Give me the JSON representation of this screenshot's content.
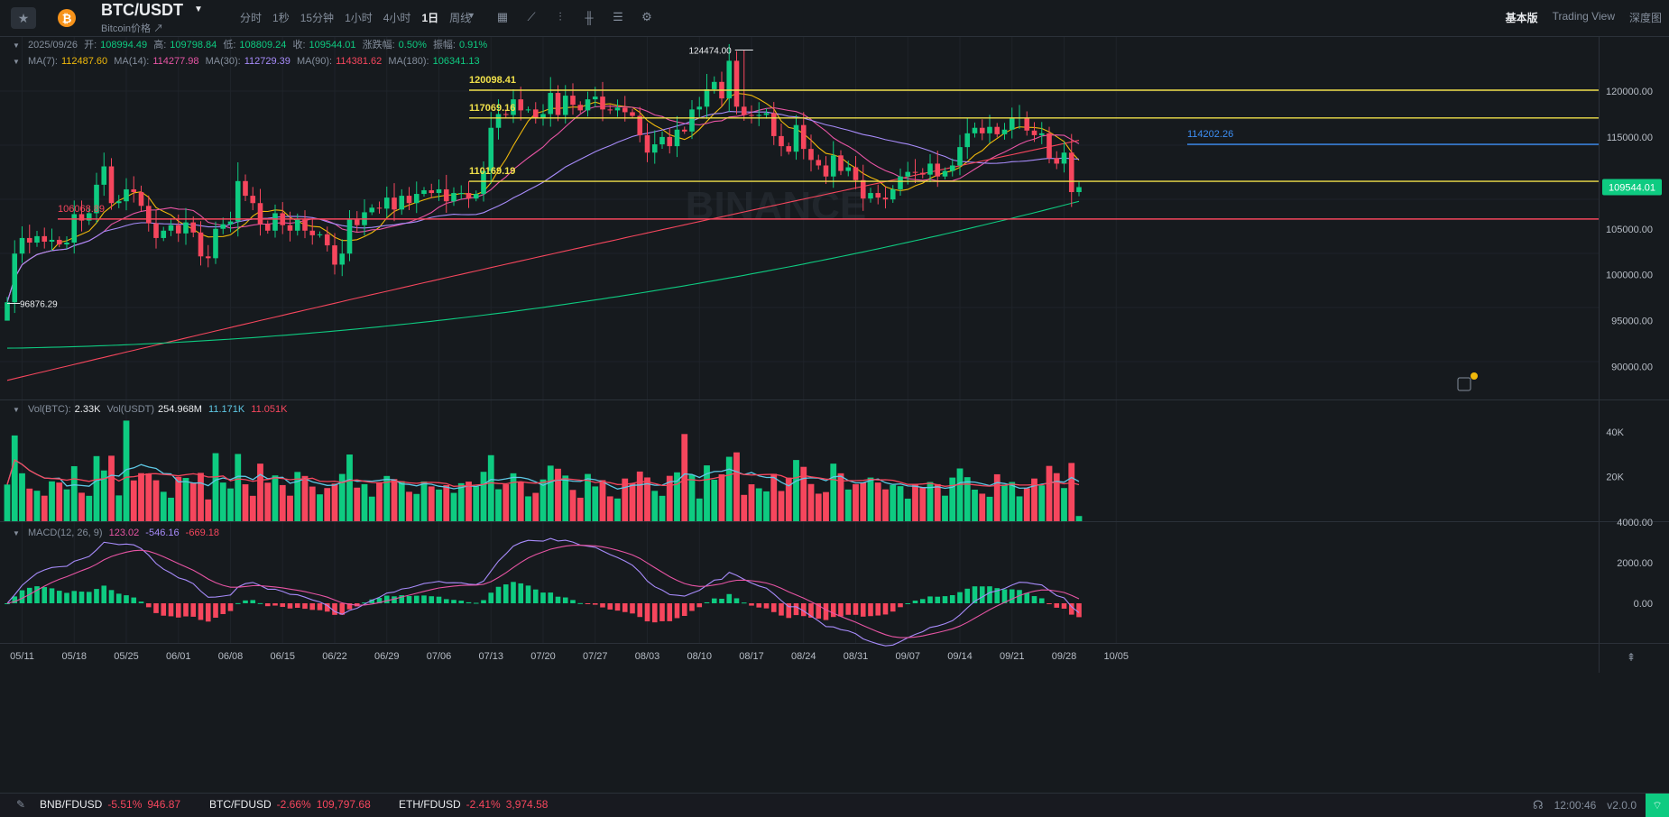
{
  "header": {
    "pair": "BTC/USDT",
    "subtitle": "Bitcoin价格 ↗",
    "coin_symbol": "₿",
    "intervals": [
      "分时",
      "1秒",
      "15分钟",
      "1小时",
      "4小时",
      "1日",
      "周线"
    ],
    "active_interval": "1日",
    "views": [
      "基本版",
      "Trading View",
      "深度图"
    ],
    "active_view": "基本版"
  },
  "ohlc": {
    "date": "2025/09/26",
    "open_label": "开:",
    "open": "108994.49",
    "high_label": "高:",
    "high": "109798.84",
    "low_label": "低:",
    "low": "108809.24",
    "close_label": "收:",
    "close": "109544.01",
    "change_label": "涨跌幅:",
    "change": "0.50%",
    "amp_label": "振幅:",
    "amp": "0.91%"
  },
  "ma": [
    {
      "label": "MA(7):",
      "value": "112487.60",
      "color": "#f0b90b"
    },
    {
      "label": "MA(14):",
      "value": "114277.98",
      "color": "#e754a4"
    },
    {
      "label": "MA(30):",
      "value": "112729.39",
      "color": "#a78bfa"
    },
    {
      "label": "MA(90):",
      "value": "114381.62",
      "color": "#f6465d"
    },
    {
      "label": "MA(180):",
      "value": "106341.13",
      "color": "#0ecb81"
    }
  ],
  "volume": {
    "btc_label": "Vol(BTC):",
    "btc": "2.33K",
    "usdt_label": "Vol(USDT)",
    "usdt": "254.968M",
    "ma1": "11.171K",
    "ma2": "11.051K"
  },
  "macd": {
    "label": "MACD(12, 26, 9)",
    "dif": "123.02",
    "dea": "-546.16",
    "hist": "-669.18"
  },
  "price_axis": [
    "120000.00",
    "115000.00",
    "110000.00",
    "105000.00",
    "100000.00",
    "95000.00",
    "90000.00"
  ],
  "volume_axis": [
    "40K",
    "20K"
  ],
  "macd_axis": [
    "4000.00",
    "2000.00",
    "0.00"
  ],
  "date_axis": [
    "05/11",
    "05/18",
    "05/25",
    "06/01",
    "06/08",
    "06/15",
    "06/22",
    "06/29",
    "07/06",
    "07/13",
    "07/20",
    "07/27",
    "08/03",
    "08/10",
    "08/17",
    "08/24",
    "08/31",
    "09/07",
    "09/14",
    "09/21",
    "09/28",
    "10/05"
  ],
  "levels": [
    {
      "value": "120098.41",
      "color": "#f0e04a"
    },
    {
      "value": "117069.16",
      "color": "#f0e04a"
    },
    {
      "value": "110169.19",
      "color": "#f0e04a"
    },
    {
      "value": "114202.26",
      "color": "#3d8ff5"
    },
    {
      "value": "106068.89",
      "color": "#f6465d"
    }
  ],
  "annotations": {
    "high_marker": "124474.00",
    "low_marker": "96876.29",
    "current_price": "109544.01",
    "watermark": "BINANCE"
  },
  "chart_data": {
    "type": "candlestick",
    "x_start": "2025/05/09",
    "x_end": "2025/09/26",
    "ylim": [
      87500,
      126000
    ],
    "closes": [
      97000,
      102300,
      104000,
      103500,
      104200,
      103600,
      103800,
      103300,
      103500,
      106600,
      105900,
      106700,
      109800,
      111800,
      107800,
      108000,
      109300,
      109000,
      107500,
      105600,
      104000,
      104800,
      105400,
      104500,
      105700,
      104600,
      102000,
      101800,
      105000,
      105500,
      105800,
      110200,
      108600,
      107800,
      105500,
      104800,
      106700,
      105400,
      104800,
      106000,
      104800,
      104300,
      104400,
      103200,
      101100,
      102300,
      106000,
      105400,
      106800,
      107300,
      107200,
      108400,
      107100,
      108600,
      107800,
      108800,
      109200,
      108900,
      109300,
      108000,
      108900,
      108900,
      108300,
      108800,
      111300,
      116000,
      117500,
      117400,
      119100,
      117900,
      118000,
      117100,
      117500,
      119800,
      117400,
      119500,
      118500,
      117900,
      119100,
      119400,
      118000,
      117900,
      118200,
      117700,
      117300,
      115200,
      113300,
      114200,
      115000,
      114000,
      115800,
      115600,
      118000,
      118300,
      120200,
      121000,
      119200,
      123300,
      118300,
      117400,
      117300,
      117400,
      117600,
      115100,
      114000,
      113400,
      116300,
      113700,
      112500,
      111900,
      110700,
      113000,
      111300,
      111700,
      110300,
      108300,
      108900,
      108400,
      108200,
      109300,
      110700,
      111200,
      111100,
      110900,
      112100,
      110700,
      111300,
      111900,
      113900,
      115400,
      116000,
      115400,
      116100,
      115300,
      115800,
      117000,
      117100,
      115700,
      115200,
      115400,
      112700,
      112100,
      113300,
      109000,
      109544
    ]
  }
}
